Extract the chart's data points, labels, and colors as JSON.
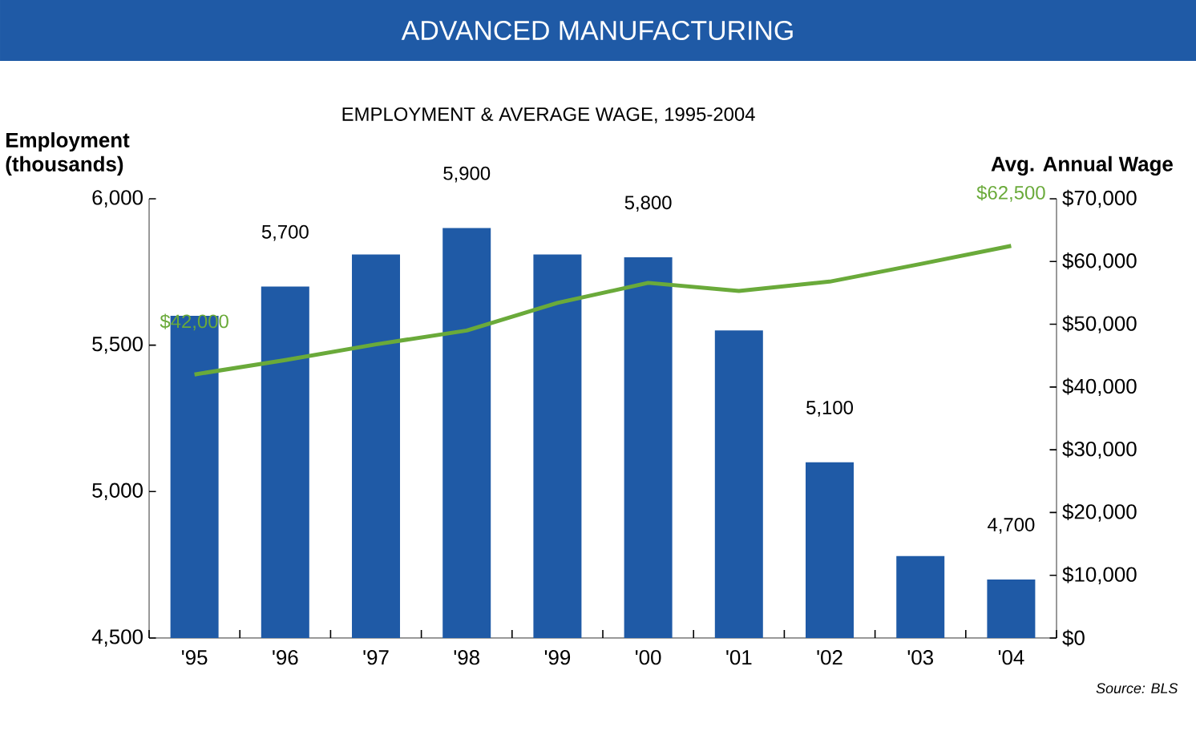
{
  "chart_data": {
    "type": "bar",
    "title": "ADVANCED MANUFACTURING",
    "subtitle": "EMPLOYMENT & AVERAGE WAGE, 1995-2004",
    "ylabel": "Employment (thousands)",
    "y2label": "Avg. Annual Wage",
    "annotations": [
      "Source: BLS"
    ],
    "categories": [
      "'95",
      "'96",
      "'97",
      "'98",
      "'99",
      "'00",
      "'01",
      "'02",
      "'03",
      "'04"
    ],
    "series": [
      {
        "color": "#1f5aa6",
        "values": [
          5600,
          5700,
          5810,
          5900,
          5810,
          5800,
          5550,
          5100,
          4780,
          4700
        ],
        "value_labels": [
          null,
          "5,700",
          null,
          "5,900",
          null,
          "5,800",
          null,
          "5,100",
          null,
          "4,700"
        ]
      },
      {
        "type": "line",
        "axis": "y2",
        "color": "#6aaa3a",
        "values": [
          42000,
          44300,
          46800,
          49000,
          53400,
          56600,
          55300,
          56800,
          59600,
          62500
        ],
        "value_labels": [
          "$42,000",
          null,
          null,
          null,
          null,
          null,
          null,
          null,
          null,
          "$62,500"
        ]
      }
    ],
    "ylim": [
      4500,
      6000
    ],
    "yticks": [
      {
        "value": 4500,
        "label": "4,500"
      },
      {
        "value": 5000,
        "label": "5,000"
      },
      {
        "value": 5500,
        "label": "5,500"
      },
      {
        "value": 6000,
        "label": "6,000"
      }
    ],
    "y2lim": [
      0,
      70000
    ],
    "y2ticks": [
      {
        "value": 0,
        "label": "$0"
      },
      {
        "value": 10000,
        "label": "$10,000"
      },
      {
        "value": 20000,
        "label": "$20,000"
      },
      {
        "value": 30000,
        "label": "$30,000"
      },
      {
        "value": 40000,
        "label": "$40,000"
      },
      {
        "value": 50000,
        "label": "$50,000"
      },
      {
        "value": 60000,
        "label": "$60,000"
      },
      {
        "value": 70000,
        "label": "$70,000"
      }
    ]
  }
}
